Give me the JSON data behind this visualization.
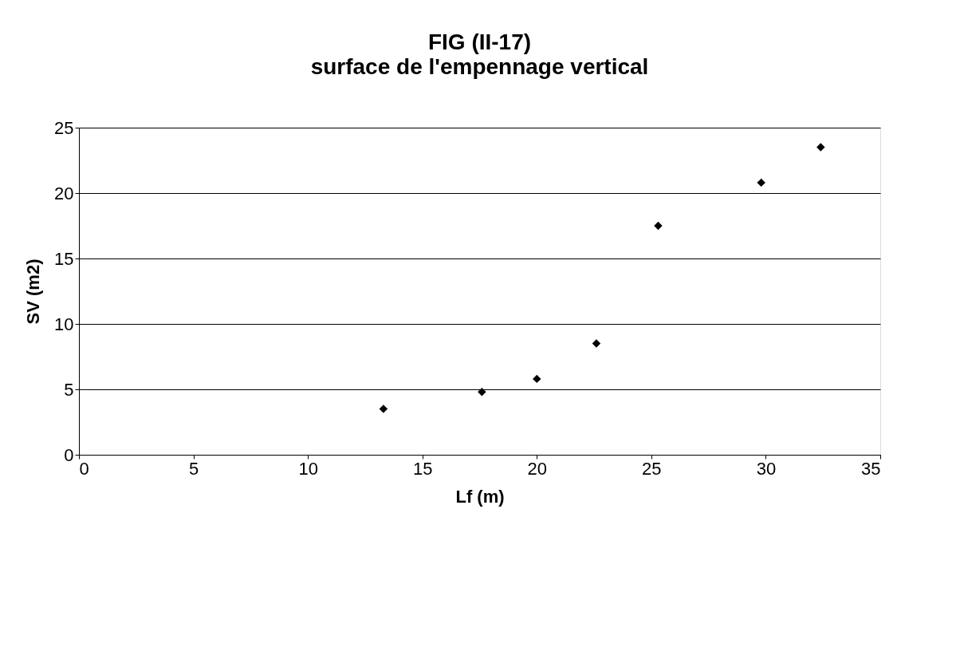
{
  "chart_data": {
    "type": "scatter",
    "title": "FIG (II-17)",
    "subtitle": "surface de l'empennage vertical",
    "xlabel": "Lf (m)",
    "ylabel": "SV (m2)",
    "x": [
      13.3,
      17.6,
      20.0,
      22.6,
      25.3,
      29.8,
      32.4
    ],
    "series": [
      {
        "color": "#000000",
        "values": [
          3.5,
          4.8,
          5.8,
          8.5,
          17.5,
          20.8,
          23.5
        ]
      }
    ],
    "xlim": [
      0,
      35
    ],
    "xticks": [
      0,
      5,
      10,
      15,
      20,
      25,
      30,
      35
    ],
    "ylim": [
      0,
      25
    ],
    "yticks": [
      0,
      5,
      10,
      15,
      20,
      25
    ],
    "grid": "y",
    "marker": "diamond"
  }
}
